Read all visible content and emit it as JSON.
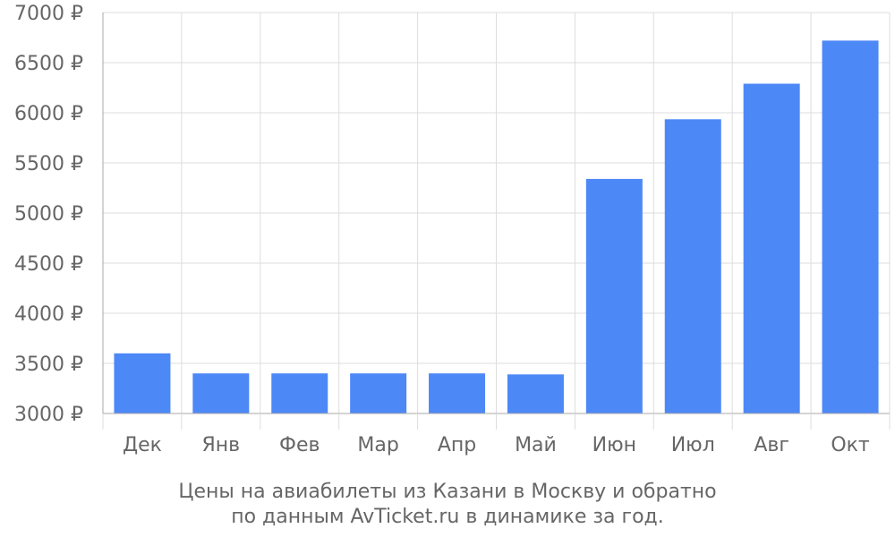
{
  "chart_data": {
    "type": "bar",
    "categories": [
      "Дек",
      "Янв",
      "Фев",
      "Мар",
      "Апр",
      "Май",
      "Июн",
      "Июл",
      "Авг",
      "Окт"
    ],
    "series": [
      {
        "values": [
          3600,
          3400,
          3400,
          3400,
          3400,
          3390,
          5340,
          5935,
          6290,
          6720
        ]
      }
    ],
    "ylim": [
      3000,
      7000
    ],
    "y_ticks": [
      "3000 ₽",
      "3500 ₽",
      "4000 ₽",
      "4500 ₽",
      "5000 ₽",
      "5500 ₽",
      "6000 ₽",
      "6500 ₽",
      "7000 ₽"
    ],
    "y_tick_values": [
      3000,
      3500,
      4000,
      4500,
      5000,
      5500,
      6000,
      6500,
      7000
    ],
    "grid": true,
    "bar_color": "#4d88f7",
    "grid_color": "#dddddd",
    "axis_color": "#aaaaaa",
    "text_color": "#666666",
    "caption": {
      "line1": "Цены на авиабилеты из Казани в Москву и обратно",
      "line2": "по данным AvTicket.ru в динамике за год."
    }
  }
}
